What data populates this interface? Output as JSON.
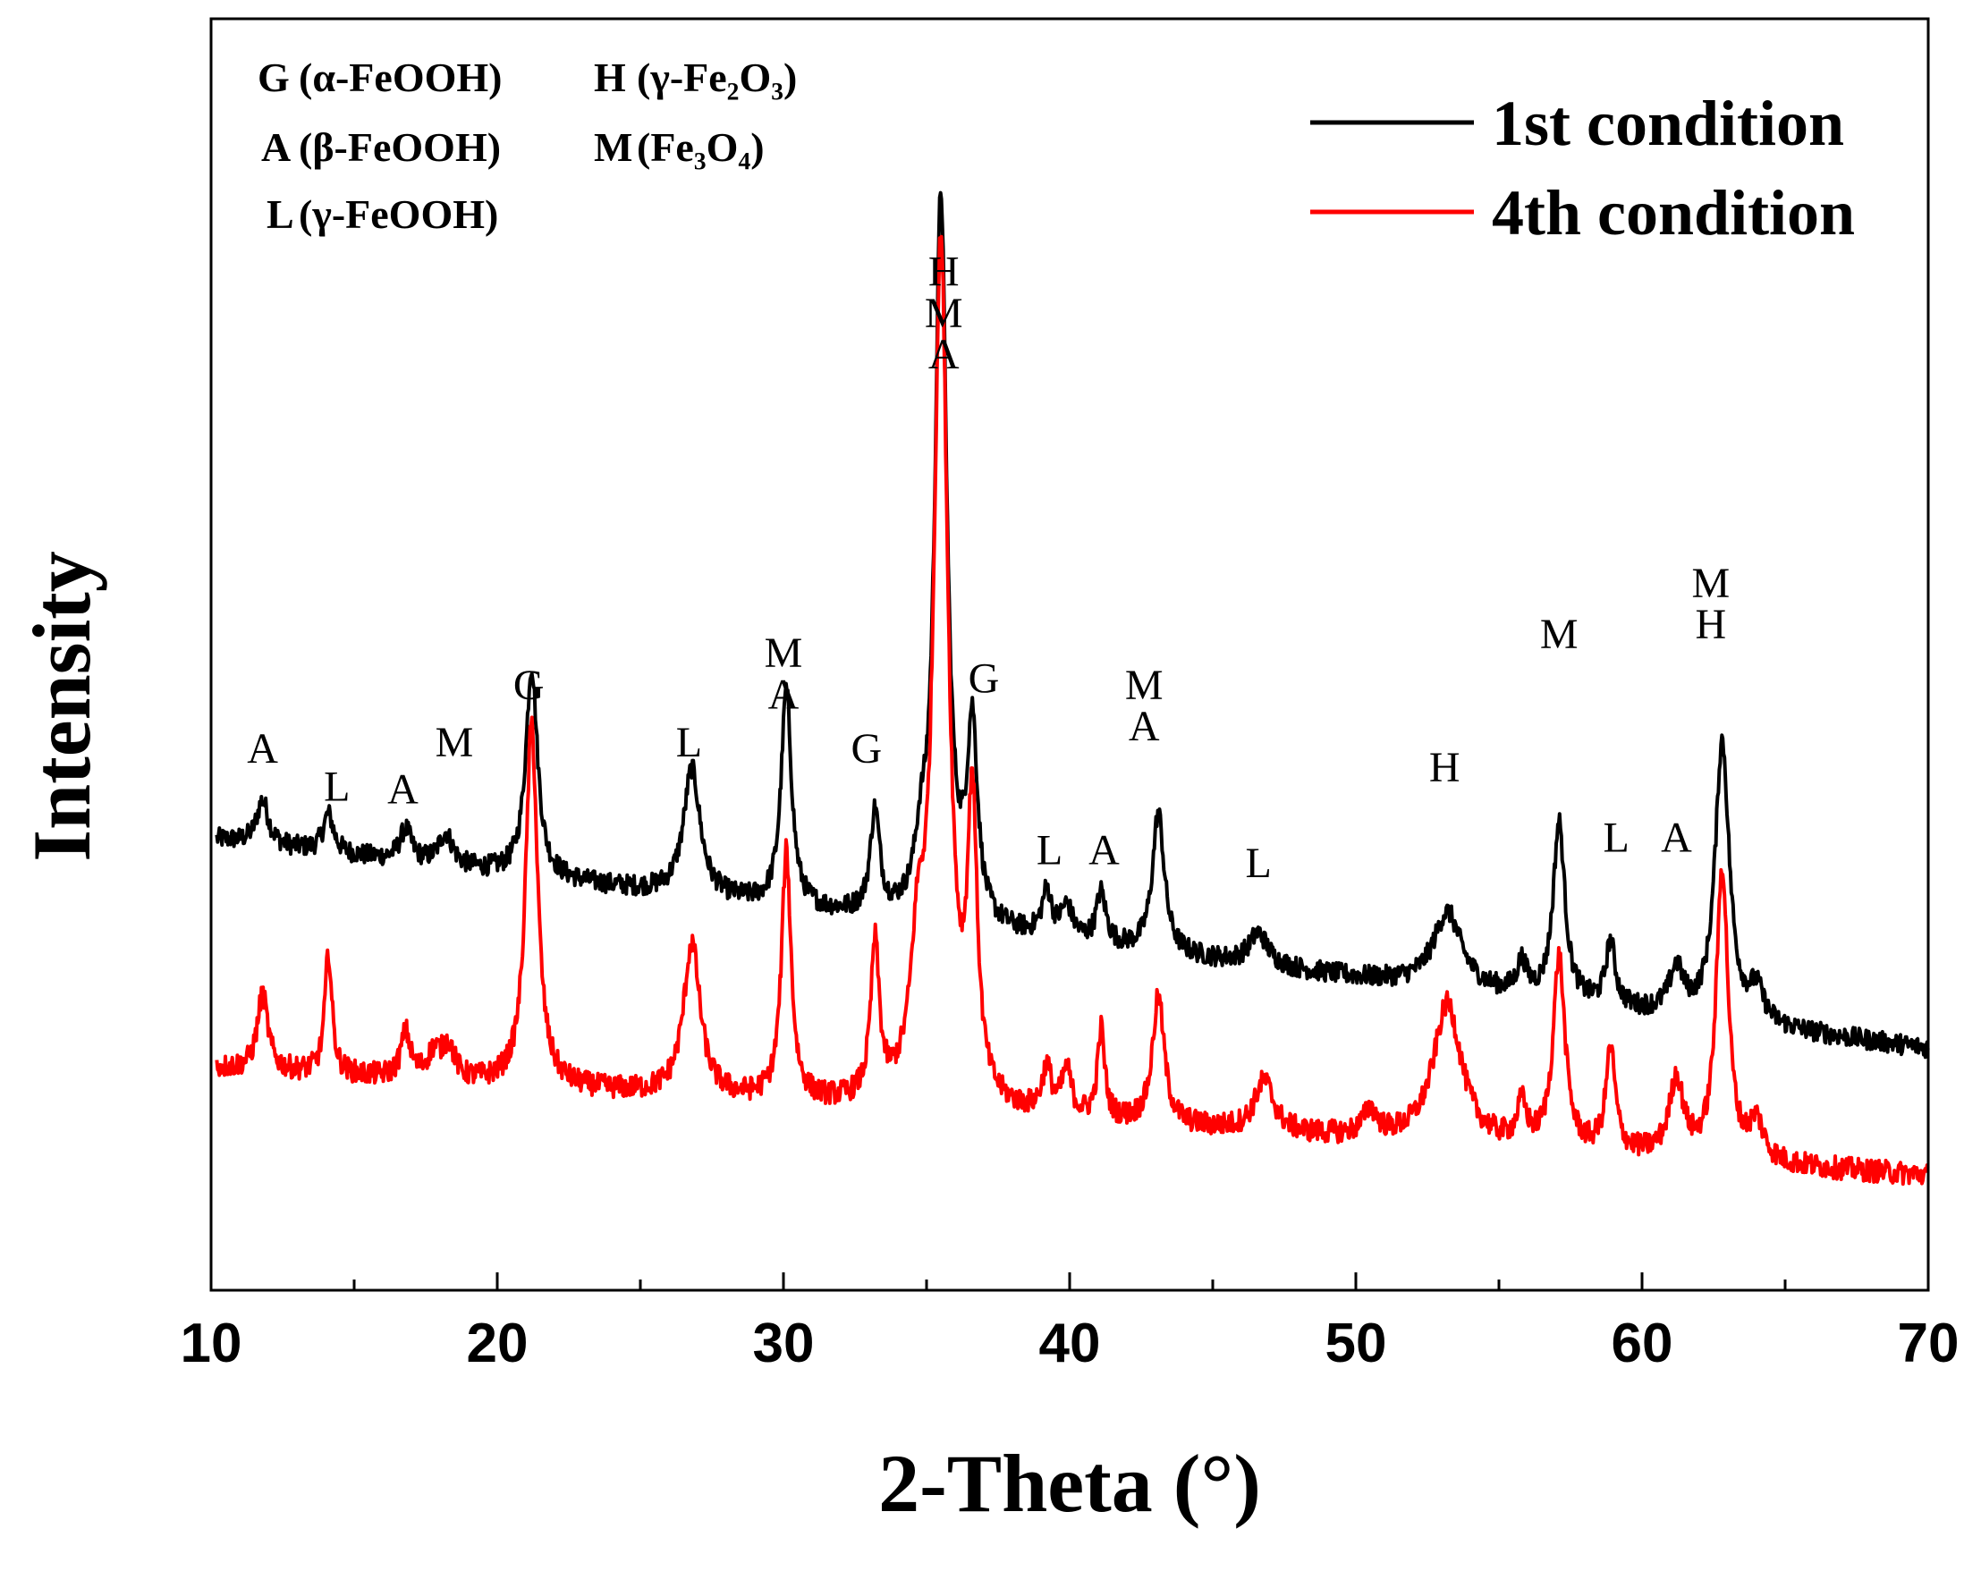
{
  "chart_data": {
    "type": "line",
    "xlabel": "2-Theta (°)",
    "ylabel": "Intensity",
    "xlim": [
      10,
      70
    ],
    "xticks": [
      10,
      20,
      30,
      40,
      50,
      60,
      70
    ],
    "grid": false,
    "legend_position": "top-right",
    "series": [
      {
        "name": "1st condition",
        "color": "#000000",
        "baseline_start": 0.355,
        "baseline_end": 0.19,
        "noise": 0.008,
        "peaks": [
          {
            "x": 11.8,
            "h": 0.035,
            "w": 0.25
          },
          {
            "x": 14.1,
            "h": 0.03,
            "w": 0.22
          },
          {
            "x": 16.8,
            "h": 0.025,
            "w": 0.25
          },
          {
            "x": 18.2,
            "h": 0.025,
            "w": 0.3
          },
          {
            "x": 21.2,
            "h": 0.165,
            "w": 0.25
          },
          {
            "x": 26.8,
            "h": 0.1,
            "w": 0.35
          },
          {
            "x": 30.1,
            "h": 0.17,
            "w": 0.22
          },
          {
            "x": 33.2,
            "h": 0.08,
            "w": 0.2
          },
          {
            "x": 34.8,
            "h": 0.04,
            "w": 0.25
          },
          {
            "x": 35.5,
            "h": 0.57,
            "w": 0.25
          },
          {
            "x": 36.6,
            "h": 0.15,
            "w": 0.22
          },
          {
            "x": 39.2,
            "h": 0.035,
            "w": 0.2
          },
          {
            "x": 39.9,
            "h": 0.025,
            "w": 0.25
          },
          {
            "x": 41.1,
            "h": 0.04,
            "w": 0.2
          },
          {
            "x": 43.1,
            "h": 0.11,
            "w": 0.25
          },
          {
            "x": 46.6,
            "h": 0.025,
            "w": 0.4
          },
          {
            "x": 53.2,
            "h": 0.06,
            "w": 0.6
          },
          {
            "x": 55.8,
            "h": 0.025,
            "w": 0.2
          },
          {
            "x": 57.1,
            "h": 0.14,
            "w": 0.25
          },
          {
            "x": 58.9,
            "h": 0.05,
            "w": 0.2
          },
          {
            "x": 61.2,
            "h": 0.035,
            "w": 0.3
          },
          {
            "x": 62.8,
            "h": 0.22,
            "w": 0.3
          },
          {
            "x": 64.0,
            "h": 0.025,
            "w": 0.3
          }
        ]
      },
      {
        "name": "4th condition",
        "color": "#ff0000",
        "baseline_start": 0.175,
        "baseline_end": 0.09,
        "noise": 0.009,
        "peaks": [
          {
            "x": 11.8,
            "h": 0.06,
            "w": 0.22
          },
          {
            "x": 14.1,
            "h": 0.095,
            "w": 0.15
          },
          {
            "x": 16.8,
            "h": 0.035,
            "w": 0.2
          },
          {
            "x": 17.8,
            "h": 0.02,
            "w": 0.3
          },
          {
            "x": 18.3,
            "h": 0.025,
            "w": 0.25
          },
          {
            "x": 21.2,
            "h": 0.285,
            "w": 0.25
          },
          {
            "x": 26.8,
            "h": 0.12,
            "w": 0.35
          },
          {
            "x": 30.1,
            "h": 0.195,
            "w": 0.2
          },
          {
            "x": 33.2,
            "h": 0.12,
            "w": 0.18
          },
          {
            "x": 34.7,
            "h": 0.1,
            "w": 0.3
          },
          {
            "x": 35.5,
            "h": 0.67,
            "w": 0.3
          },
          {
            "x": 36.6,
            "h": 0.225,
            "w": 0.2
          },
          {
            "x": 39.2,
            "h": 0.035,
            "w": 0.2
          },
          {
            "x": 39.9,
            "h": 0.035,
            "w": 0.2
          },
          {
            "x": 41.1,
            "h": 0.07,
            "w": 0.15
          },
          {
            "x": 43.1,
            "h": 0.1,
            "w": 0.25
          },
          {
            "x": 46.8,
            "h": 0.04,
            "w": 0.4
          },
          {
            "x": 50.5,
            "h": 0.02,
            "w": 0.3
          },
          {
            "x": 53.2,
            "h": 0.11,
            "w": 0.6
          },
          {
            "x": 55.8,
            "h": 0.03,
            "w": 0.2
          },
          {
            "x": 57.1,
            "h": 0.15,
            "w": 0.25
          },
          {
            "x": 58.9,
            "h": 0.08,
            "w": 0.2
          },
          {
            "x": 61.2,
            "h": 0.06,
            "w": 0.3
          },
          {
            "x": 62.8,
            "h": 0.23,
            "w": 0.25
          },
          {
            "x": 64.0,
            "h": 0.03,
            "w": 0.3
          }
        ]
      }
    ],
    "phase_key": [
      {
        "letter": "G",
        "phase": "(α-FeOOH)"
      },
      {
        "letter": "H",
        "phase": "(γ-Fe₂O₃)"
      },
      {
        "letter": "A",
        "phase": "(β-FeOOH)"
      },
      {
        "letter": "M",
        "phase": "(Fe₃O₄)"
      },
      {
        "letter": "L",
        "phase": "(γ-FeOOH)"
      }
    ],
    "peak_annotations": [
      {
        "x": 11.8,
        "lines": [
          "A"
        ],
        "y": 0.415
      },
      {
        "x": 14.4,
        "lines": [
          "L"
        ],
        "y": 0.385
      },
      {
        "x": 16.7,
        "lines": [
          "A"
        ],
        "y": 0.383
      },
      {
        "x": 18.5,
        "lines": [
          "M"
        ],
        "y": 0.42
      },
      {
        "x": 21.1,
        "lines": [
          "G"
        ],
        "y": 0.465
      },
      {
        "x": 26.7,
        "lines": [
          "L"
        ],
        "y": 0.42
      },
      {
        "x": 30.0,
        "lines": [
          "M",
          "A"
        ],
        "y": 0.49
      },
      {
        "x": 32.9,
        "lines": [
          "G"
        ],
        "y": 0.415
      },
      {
        "x": 35.6,
        "lines": [
          "H",
          "M",
          "A"
        ],
        "y": 0.79
      },
      {
        "x": 37.0,
        "lines": [
          "G"
        ],
        "y": 0.47
      },
      {
        "x": 39.3,
        "lines": [
          "L"
        ],
        "y": 0.335
      },
      {
        "x": 41.2,
        "lines": [
          "A"
        ],
        "y": 0.335
      },
      {
        "x": 42.6,
        "lines": [
          "M",
          "A"
        ],
        "y": 0.465
      },
      {
        "x": 46.6,
        "lines": [
          "L"
        ],
        "y": 0.325
      },
      {
        "x": 53.1,
        "lines": [
          "H"
        ],
        "y": 0.4
      },
      {
        "x": 57.1,
        "lines": [
          "M"
        ],
        "y": 0.505
      },
      {
        "x": 59.1,
        "lines": [
          "L"
        ],
        "y": 0.345
      },
      {
        "x": 61.2,
        "lines": [
          "A"
        ],
        "y": 0.345
      },
      {
        "x": 62.4,
        "lines": [
          "M",
          "H"
        ],
        "y": 0.545
      }
    ]
  }
}
